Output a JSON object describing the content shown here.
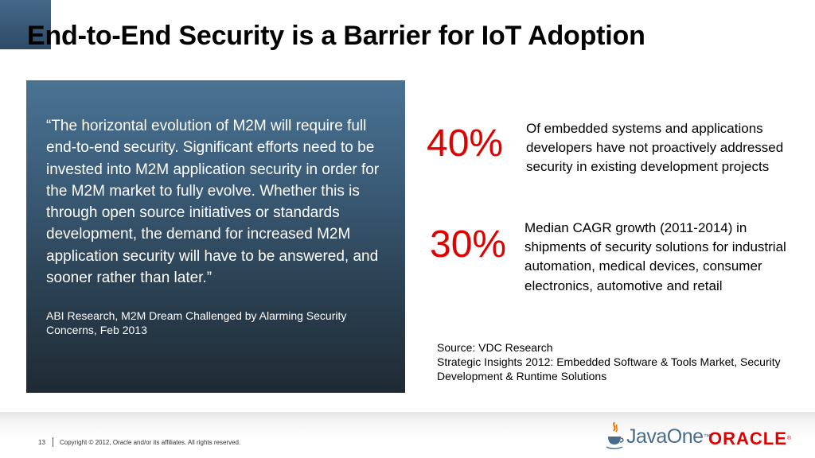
{
  "slide": {
    "title": "End-to-End Security is a Barrier for IoT Adoption",
    "quote": {
      "text": "“The horizontal evolution of M2M will require full end-to-end security. Significant efforts need to be invested into M2M application security in order for the M2M market to fully evolve. Whether this is through open source initiatives or standards development, the demand for increased M2M application security will have to be answered, and sooner rather than later.”",
      "source": "ABI Research, M2M Dream Challenged by Alarming Security Concerns, Feb 2013"
    },
    "stats": [
      {
        "value": "40%",
        "description": "Of embedded systems and applications developers have not proactively addressed security in existing development projects"
      },
      {
        "value": "30%",
        "description": "Median CAGR growth (2011-2014) in shipments of security solutions for industrial automation, medical devices, consumer electronics, automotive and retail"
      }
    ],
    "source_note": {
      "line1": "Source: VDC Research",
      "line2": "Strategic Insights 2012: Embedded Software & Tools Market, Security Development & Runtime Solutions"
    }
  },
  "footer": {
    "page_number": "13",
    "copyright": "Copyright © 2012, Oracle and/or its affiliates. All rights reserved.",
    "javaone_logo": "JavaOne",
    "oracle_logo": "ORACLE",
    "java_icon": "java-cup-icon"
  },
  "colors": {
    "accent_red": "#e00000",
    "panel_top": "#4a7393",
    "panel_bottom": "#1f2a33",
    "javaone_blue": "#4a6c8c"
  }
}
